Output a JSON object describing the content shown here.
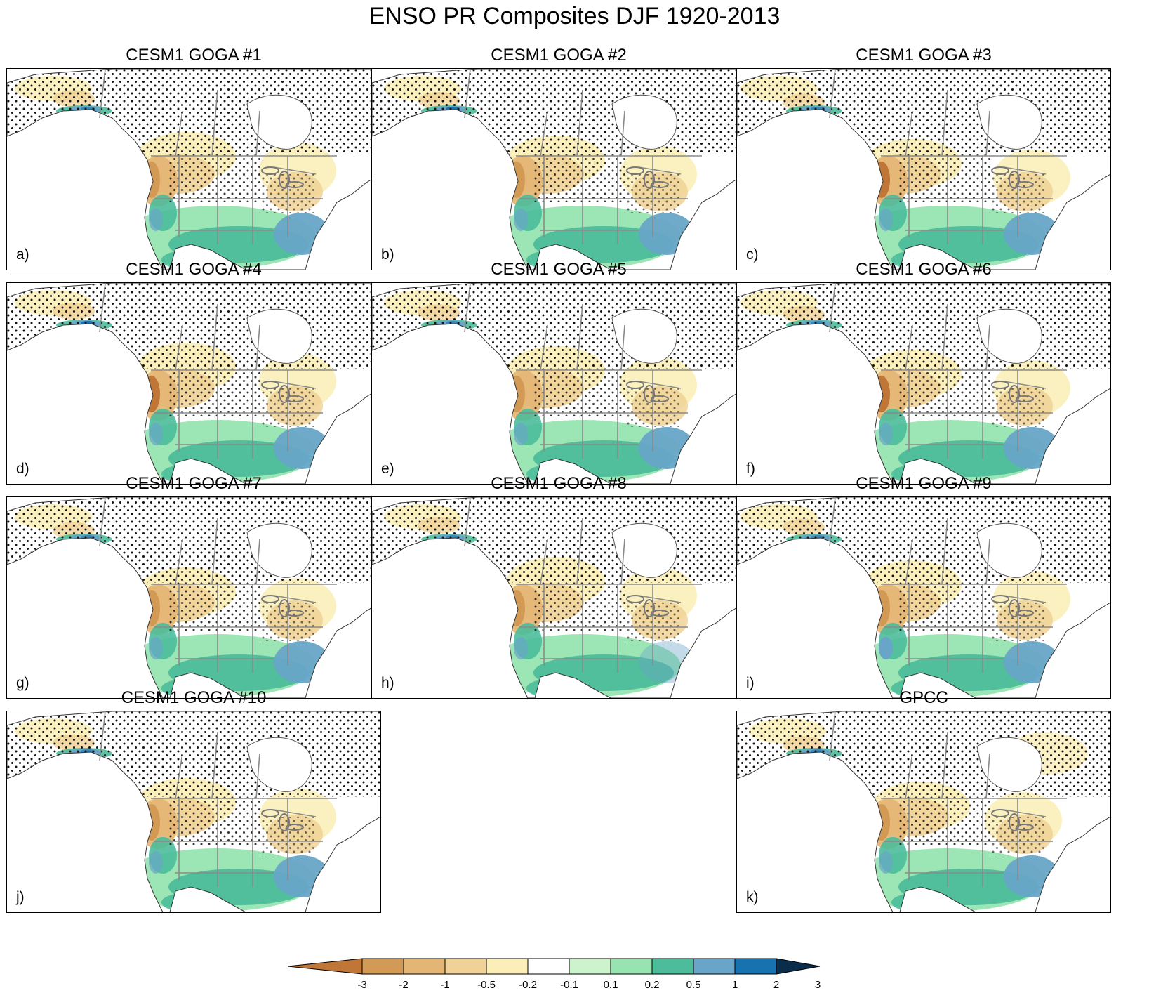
{
  "title": "ENSO PR Composites DJF 1920-2013",
  "panels": [
    {
      "title": "CESM1 GOGA #1",
      "label": "a)",
      "variant": 1
    },
    {
      "title": "CESM1 GOGA #2",
      "label": "b)",
      "variant": 2
    },
    {
      "title": "CESM1 GOGA #3",
      "label": "c)",
      "variant": 3
    },
    {
      "title": "CESM1 GOGA #4",
      "label": "d)",
      "variant": 4
    },
    {
      "title": "CESM1 GOGA #5",
      "label": "e)",
      "variant": 5
    },
    {
      "title": "CESM1 GOGA #6",
      "label": "f)",
      "variant": 6
    },
    {
      "title": "CESM1 GOGA #7",
      "label": "g)",
      "variant": 7
    },
    {
      "title": "CESM1 GOGA #8",
      "label": "h)",
      "variant": 8
    },
    {
      "title": "CESM1 GOGA #9",
      "label": "i)",
      "variant": 9
    },
    {
      "title": "CESM1 GOGA #10",
      "label": "j)",
      "variant": 10
    },
    {
      "title": "GPCC",
      "label": "k)",
      "variant": 11
    }
  ],
  "colorbar": {
    "labels": [
      "-3",
      "-2",
      "-1",
      "-0.5",
      "-0.2",
      "-0.1",
      "0.1",
      "0.2",
      "0.5",
      "1",
      "2",
      "3"
    ],
    "colors": [
      "#bf7636",
      "#d39a56",
      "#e4b676",
      "#f0d297",
      "#fbeeb8",
      "#ffffff",
      "#cdf3cc",
      "#97e4b0",
      "#4dbc9b",
      "#68a5c8",
      "#1772b0",
      "#0b2d4c"
    ]
  }
}
